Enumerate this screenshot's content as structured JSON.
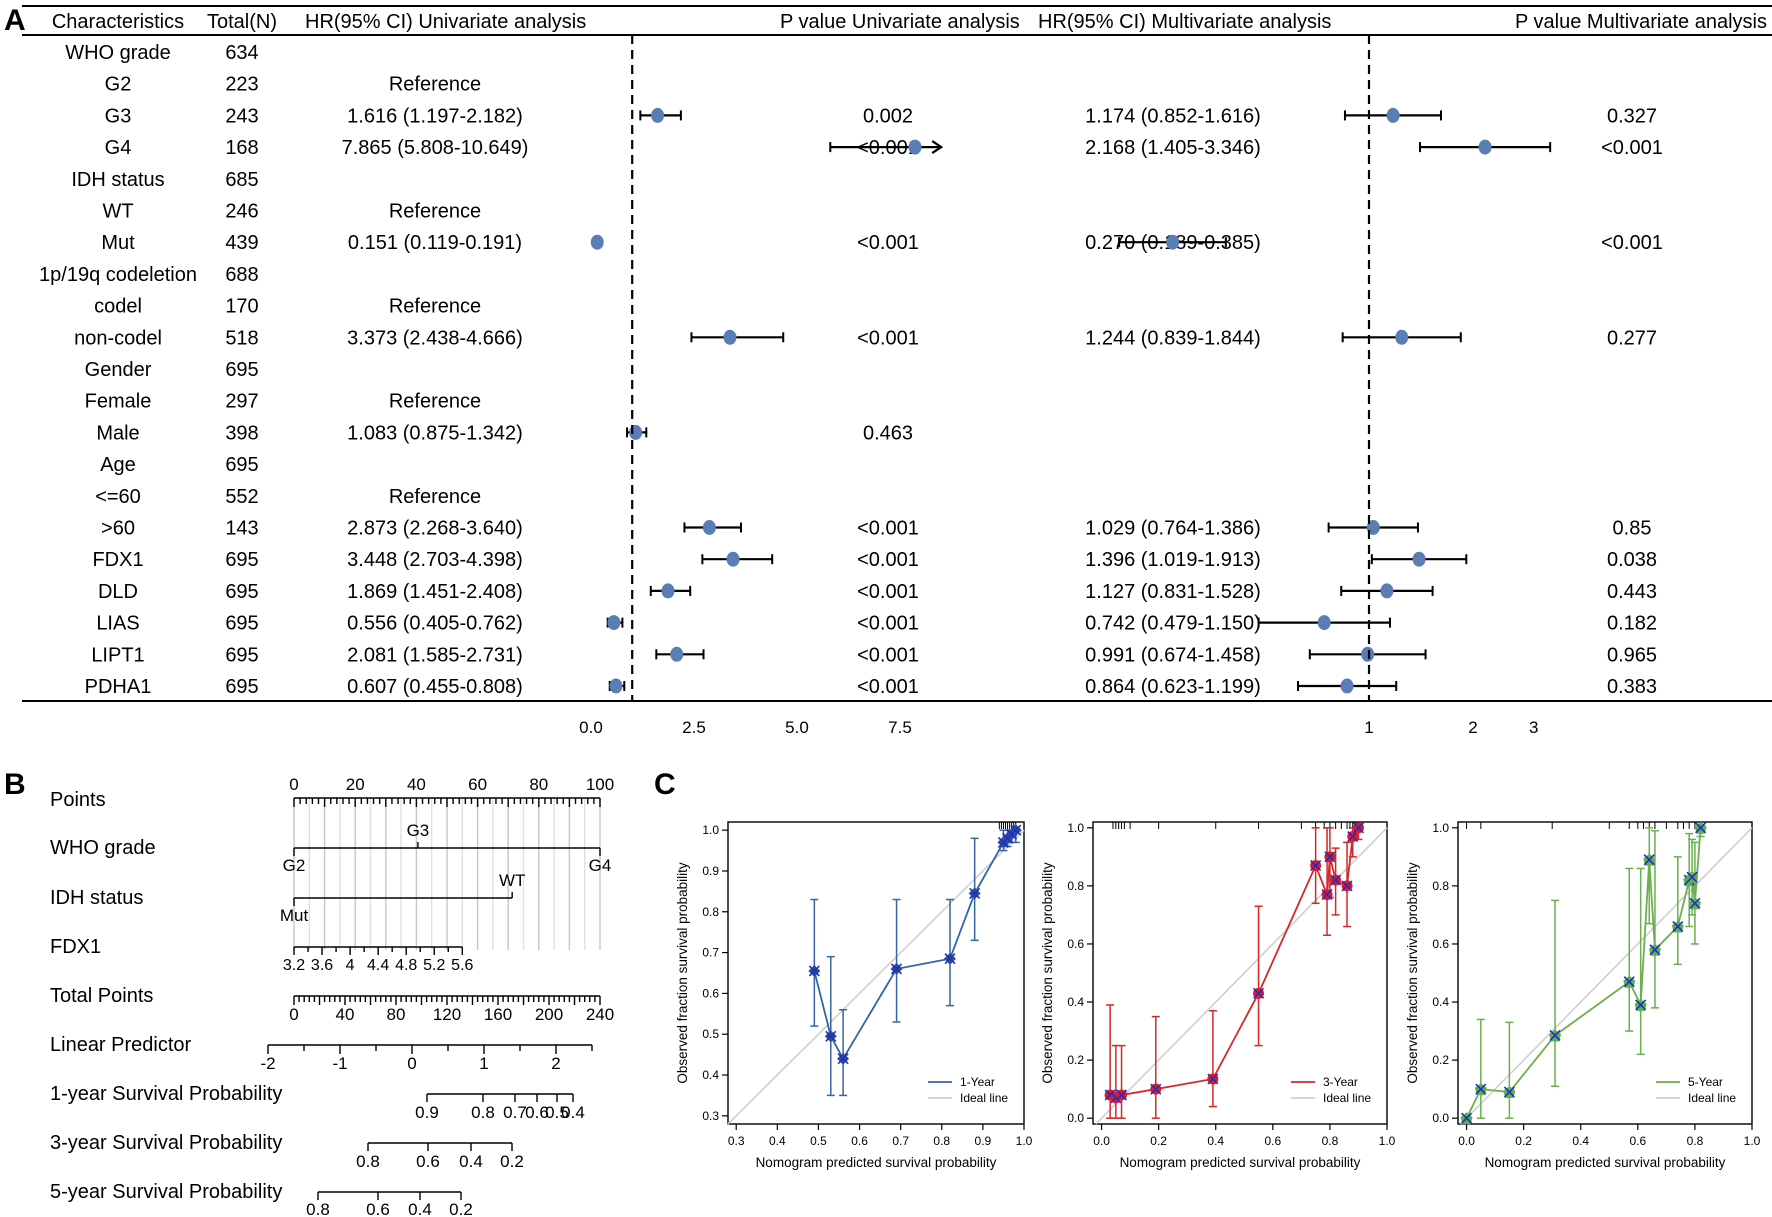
{
  "panel_labels": [
    "A",
    "B",
    "C"
  ],
  "forest": {
    "headers": [
      "Characteristics",
      "Total(N)",
      "HR(95% CI) Univariate analysis",
      "P value Univariate analysis",
      "HR(95% CI) Multivariate analysis",
      "P value Multivariate analysis"
    ],
    "rows": [
      {
        "label": "WHO grade",
        "n": "634",
        "uni_hr": "",
        "uni_p": "",
        "multi_hr": "",
        "multi_p": "",
        "header": true
      },
      {
        "label": "G2",
        "n": "223",
        "uni_hr": "Reference",
        "uni_p": "",
        "multi_hr": "",
        "multi_p": ""
      },
      {
        "label": "G3",
        "n": "243",
        "uni_hr": "1.616 (1.197-2.182)",
        "uni_p": "0.002",
        "multi_hr": "1.174 (0.852-1.616)",
        "multi_p": "0.327",
        "u": [
          1.616,
          1.197,
          2.182
        ],
        "m": [
          1.174,
          0.852,
          1.616
        ]
      },
      {
        "label": "G4",
        "n": "168",
        "uni_hr": "7.865 (5.808-10.649)",
        "uni_p": "<0.001",
        "multi_hr": "2.168 (1.405-3.346)",
        "multi_p": "<0.001",
        "u": [
          7.865,
          5.808,
          10.649
        ],
        "m": [
          2.168,
          1.405,
          3.346
        ]
      },
      {
        "label": "IDH status",
        "n": "685",
        "uni_hr": "",
        "uni_p": "",
        "multi_hr": "",
        "multi_p": "",
        "header": true
      },
      {
        "label": "WT",
        "n": "246",
        "uni_hr": "Reference",
        "uni_p": "",
        "multi_hr": "",
        "multi_p": ""
      },
      {
        "label": "Mut",
        "n": "439",
        "uni_hr": "0.151 (0.119-0.191)",
        "uni_p": "<0.001",
        "multi_hr": "0.270 (0.189-0.385)",
        "multi_p": "<0.001",
        "u": [
          0.151,
          0.119,
          0.191
        ],
        "m": [
          0.27,
          0.189,
          0.385
        ]
      },
      {
        "label": "1p/19q codeletion",
        "n": "688",
        "uni_hr": "",
        "uni_p": "",
        "multi_hr": "",
        "multi_p": "",
        "header": true
      },
      {
        "label": "codel",
        "n": "170",
        "uni_hr": "Reference",
        "uni_p": "",
        "multi_hr": "",
        "multi_p": ""
      },
      {
        "label": "non-codel",
        "n": "518",
        "uni_hr": "3.373 (2.438-4.666)",
        "uni_p": "<0.001",
        "multi_hr": "1.244 (0.839-1.844)",
        "multi_p": "0.277",
        "u": [
          3.373,
          2.438,
          4.666
        ],
        "m": [
          1.244,
          0.839,
          1.844
        ]
      },
      {
        "label": "Gender",
        "n": "695",
        "uni_hr": "",
        "uni_p": "",
        "multi_hr": "",
        "multi_p": "",
        "header": true
      },
      {
        "label": "Female",
        "n": "297",
        "uni_hr": "Reference",
        "uni_p": "",
        "multi_hr": "",
        "multi_p": ""
      },
      {
        "label": "Male",
        "n": "398",
        "uni_hr": "1.083 (0.875-1.342)",
        "uni_p": "0.463",
        "multi_hr": "",
        "multi_p": "",
        "u": [
          1.083,
          0.875,
          1.342
        ]
      },
      {
        "label": "Age",
        "n": "695",
        "uni_hr": "",
        "uni_p": "",
        "multi_hr": "",
        "multi_p": "",
        "header": true
      },
      {
        "label": "<=60",
        "n": "552",
        "uni_hr": "Reference",
        "uni_p": "",
        "multi_hr": "",
        "multi_p": ""
      },
      {
        "label": ">60",
        "n": "143",
        "uni_hr": "2.873 (2.268-3.640)",
        "uni_p": "<0.001",
        "multi_hr": "1.029 (0.764-1.386)",
        "multi_p": "0.85",
        "u": [
          2.873,
          2.268,
          3.64
        ],
        "m": [
          1.029,
          0.764,
          1.386
        ]
      },
      {
        "label": "FDX1",
        "n": "695",
        "uni_hr": "3.448 (2.703-4.398)",
        "uni_p": "<0.001",
        "multi_hr": "1.396 (1.019-1.913)",
        "multi_p": "0.038",
        "u": [
          3.448,
          2.703,
          4.398
        ],
        "m": [
          1.396,
          1.019,
          1.913
        ]
      },
      {
        "label": "DLD",
        "n": "695",
        "uni_hr": "1.869 (1.451-2.408)",
        "uni_p": "<0.001",
        "multi_hr": "1.127 (0.831-1.528)",
        "multi_p": "0.443",
        "u": [
          1.869,
          1.451,
          2.408
        ],
        "m": [
          1.127,
          0.831,
          1.528
        ]
      },
      {
        "label": "LIAS",
        "n": "695",
        "uni_hr": "0.556 (0.405-0.762)",
        "uni_p": "<0.001",
        "multi_hr": "0.742 (0.479-1.150)",
        "multi_p": "0.182",
        "u": [
          0.556,
          0.405,
          0.762
        ],
        "m": [
          0.742,
          0.479,
          1.15
        ]
      },
      {
        "label": "LIPT1",
        "n": "695",
        "uni_hr": "2.081 (1.585-2.731)",
        "uni_p": "<0.001",
        "multi_hr": "0.991 (0.674-1.458)",
        "multi_p": "0.965",
        "u": [
          2.081,
          1.585,
          2.731
        ],
        "m": [
          0.991,
          0.674,
          1.458
        ]
      },
      {
        "label": "PDHA1",
        "n": "695",
        "uni_hr": "0.607 (0.455-0.808)",
        "uni_p": "<0.001",
        "multi_hr": "0.864 (0.623-1.199)",
        "multi_p": "0.383",
        "u": [
          0.607,
          0.455,
          0.808
        ],
        "m": [
          0.864,
          0.623,
          1.199
        ]
      }
    ],
    "uni_axis": {
      "ticks": [
        0.0,
        2.5,
        5.0,
        7.5
      ],
      "tick_labels": [
        "0.0",
        "2.5",
        "5.0",
        "7.5"
      ],
      "ref": 1,
      "range": [
        0,
        8.5
      ]
    },
    "multi_axis": {
      "ticks": [
        1,
        2,
        3
      ],
      "tick_labels": [
        "1",
        "2",
        "3"
      ],
      "ref": 1,
      "scale": "log"
    },
    "point_color": "#5a7db5"
  },
  "nomogram": {
    "points": {
      "label": "Points",
      "ticks": [
        "0",
        "20",
        "40",
        "60",
        "80",
        "100"
      ]
    },
    "who": {
      "label": "WHO grade",
      "levels": [
        "G2",
        "G3",
        "G4"
      ]
    },
    "idh": {
      "label": "IDH status",
      "levels": [
        "Mut",
        "WT"
      ]
    },
    "fdx1": {
      "label": "FDX1",
      "ticks": [
        "3.2",
        "3.6",
        "4",
        "4.4",
        "4.8",
        "5.2",
        "5.6"
      ]
    },
    "total": {
      "label": "Total Points",
      "ticks": [
        "0",
        "40",
        "80",
        "120",
        "160",
        "200",
        "240"
      ]
    },
    "lp": {
      "label": "Linear Predictor",
      "ticks": [
        "-2",
        "-1",
        "0",
        "1",
        "2"
      ]
    },
    "s1": {
      "label": "1-year Survival Probability",
      "ticks": [
        "0.9",
        "0.8",
        "0.7",
        "0.6",
        "0.5",
        "0.4"
      ]
    },
    "s3": {
      "label": "3-year Survival Probability",
      "ticks": [
        "0.8",
        "0.6",
        "0.4",
        "0.2"
      ]
    },
    "s5": {
      "label": "5-year Survival Probability",
      "ticks": [
        "0.8",
        "0.6",
        "0.4",
        "0.2"
      ]
    }
  },
  "chart_data": [
    {
      "type": "forest",
      "title": "Univariate analysis",
      "series": [
        {
          "name": "HR",
          "values": [
            1.616,
            7.865,
            0.151,
            3.373,
            1.083,
            2.873,
            3.448,
            1.869,
            0.556,
            2.081,
            0.607
          ]
        }
      ],
      "x_ticks": [
        0.0,
        2.5,
        5.0,
        7.5
      ],
      "reference": 1
    },
    {
      "type": "forest",
      "title": "Multivariate analysis",
      "series": [
        {
          "name": "HR",
          "values": [
            1.174,
            2.168,
            0.27,
            1.244,
            1.029,
            1.396,
            1.127,
            0.742,
            0.991,
            0.864
          ]
        }
      ],
      "x_ticks": [
        1,
        2,
        3
      ],
      "reference": 1
    },
    {
      "type": "line",
      "xlabel": "Nomogram predicted survival probability",
      "ylabel": "Observed fraction survival probability",
      "xlim": [
        0.28,
        1.0
      ],
      "ylim": [
        0.28,
        1.02
      ],
      "xticks": [
        "0.3",
        "0.4",
        "0.5",
        "0.6",
        "0.7",
        "0.8",
        "0.9",
        "1.0"
      ],
      "yticks": [
        "0.3",
        "0.4",
        "0.5",
        "0.6",
        "0.7",
        "0.8",
        "0.9",
        "1.0"
      ],
      "legend": [
        "1-Year",
        "Ideal line"
      ],
      "color": "#3465a4",
      "series": [
        {
          "name": "1-Year",
          "x": [
            0.49,
            0.53,
            0.56,
            0.69,
            0.82,
            0.88,
            0.95,
            0.96,
            0.97,
            0.98
          ],
          "y": [
            0.655,
            0.495,
            0.44,
            0.66,
            0.685,
            0.845,
            0.97,
            0.98,
            0.99,
            1.0
          ],
          "lo": [
            0.52,
            0.35,
            0.35,
            0.53,
            0.57,
            0.73,
            0.95,
            0.96,
            0.97,
            0.97
          ],
          "hi": [
            0.83,
            0.69,
            0.56,
            0.83,
            0.83,
            0.98,
            1.0,
            1.0,
            1.0,
            1.0
          ]
        }
      ]
    },
    {
      "type": "line",
      "xlabel": "Nomogram predicted survival probability",
      "ylabel": "Observed fraction survival probability",
      "xlim": [
        -0.03,
        1.0
      ],
      "ylim": [
        -0.02,
        1.02
      ],
      "xticks": [
        "0.0",
        "0.2",
        "0.4",
        "0.6",
        "0.8",
        "1.0"
      ],
      "yticks": [
        "0.0",
        "0.2",
        "0.4",
        "0.6",
        "0.8",
        "1.0"
      ],
      "legend": [
        "3-Year",
        "Ideal line"
      ],
      "color": "#d62728",
      "series": [
        {
          "name": "3-Year",
          "x": [
            0.03,
            0.05,
            0.07,
            0.19,
            0.39,
            0.55,
            0.75,
            0.79,
            0.8,
            0.82,
            0.86,
            0.88,
            0.9
          ],
          "y": [
            0.08,
            0.07,
            0.08,
            0.1,
            0.135,
            0.43,
            0.87,
            0.77,
            0.9,
            0.82,
            0.8,
            0.97,
            1.0
          ],
          "lo": [
            0.0,
            0.0,
            0.0,
            0.0,
            0.04,
            0.25,
            0.74,
            0.63,
            0.76,
            0.7,
            0.66,
            0.9,
            0.96
          ],
          "hi": [
            0.39,
            0.25,
            0.25,
            0.35,
            0.37,
            0.73,
            1.0,
            1.0,
            1.0,
            0.93,
            0.95,
            1.0,
            1.0
          ]
        }
      ]
    },
    {
      "type": "line",
      "xlabel": "Nomogram predicted survival probability",
      "ylabel": "Observed fraction survival probability",
      "xlim": [
        -0.03,
        1.0
      ],
      "ylim": [
        -0.02,
        1.02
      ],
      "xticks": [
        "0.0",
        "0.2",
        "0.4",
        "0.6",
        "0.8",
        "1.0"
      ],
      "yticks": [
        "0.0",
        "0.2",
        "0.4",
        "0.6",
        "0.8",
        "1.0"
      ],
      "legend": [
        "5-Year",
        "Ideal line"
      ],
      "color": "#6ab04c",
      "series": [
        {
          "name": "5-Year",
          "x": [
            0.0,
            0.05,
            0.15,
            0.31,
            0.57,
            0.61,
            0.64,
            0.66,
            0.74,
            0.78,
            0.79,
            0.8,
            0.82
          ],
          "y": [
            0.0,
            0.1,
            0.09,
            0.285,
            0.47,
            0.39,
            0.89,
            0.58,
            0.66,
            0.82,
            0.83,
            0.74,
            1.0
          ],
          "lo": [
            0.0,
            0.0,
            0.0,
            0.11,
            0.3,
            0.22,
            0.67,
            0.38,
            0.53,
            0.66,
            0.7,
            0.6,
            0.97
          ],
          "hi": [
            0.0,
            0.34,
            0.33,
            0.75,
            0.86,
            0.86,
            1.0,
            0.99,
            0.9,
            0.98,
            0.96,
            0.95,
            1.0
          ]
        }
      ]
    }
  ]
}
